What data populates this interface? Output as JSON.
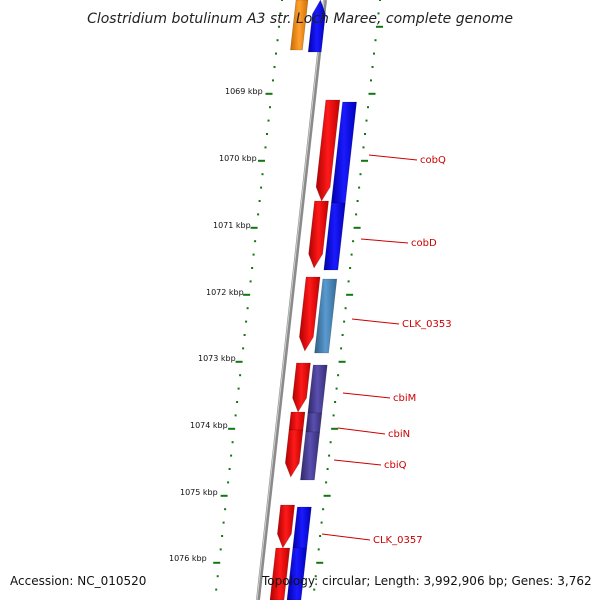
{
  "title": "Clostridium botulinum A3 str. Loch Maree, complete genome",
  "accession": "Accession: NC_010520",
  "topology": "Topology: circular; Length: 3,992,906 bp; Genes: 3,762",
  "tick_labels": [
    "1069 kbp",
    "1070 kbp",
    "1071 kbp",
    "1072 kbp",
    "1073 kbp",
    "1074 kbp",
    "1075 kbp",
    "1076 kbp"
  ],
  "gene_labels": [
    "cobQ",
    "cobD",
    "CLK_0353",
    "cbiM",
    "cbiN",
    "cbiQ",
    "CLK_0357"
  ],
  "colors": {
    "backbone": "#888888",
    "inner_ticks": "#117711",
    "outer_ticks": "#117711",
    "gene_red": "#ee0000",
    "gene_blue": "#0000ee",
    "gene_steel": "#4682b4",
    "gene_purple": "#483d8b",
    "gene_orange": "#ff8c00",
    "label_red": "#cc0000"
  }
}
